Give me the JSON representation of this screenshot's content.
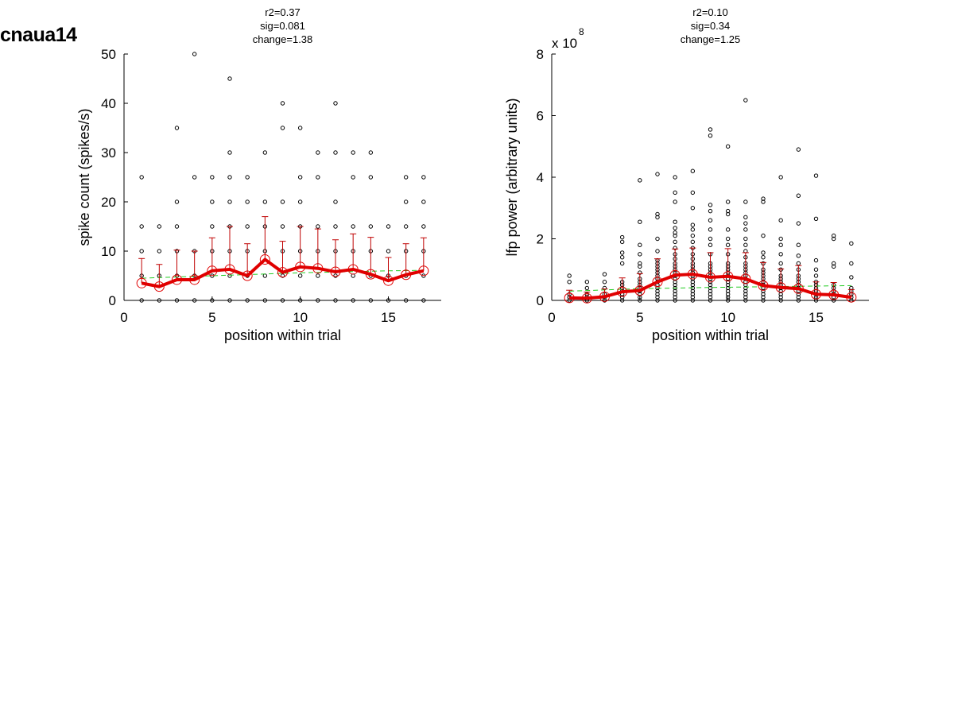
{
  "figure": {
    "title": "cnaua14"
  },
  "colors": {
    "mean_line": "#e00000",
    "error_bar": "#c00000",
    "fit_line": "#22cc22",
    "points": "#000000"
  },
  "chart_data": [
    {
      "type": "scatter",
      "stats": [
        "r2=0.37",
        "sig=0.081",
        "change=1.38"
      ],
      "xlabel": "position within trial",
      "ylabel": "spike count (spikes/s)",
      "exponent_label": "",
      "exponent_power": "",
      "xlim": [
        0,
        18
      ],
      "ylim": [
        0,
        50
      ],
      "xticks": [
        0,
        5,
        10,
        15
      ],
      "yticks": [
        0,
        10,
        20,
        30,
        40,
        50
      ],
      "points": [
        {
          "x": 1,
          "y": [
            0,
            5,
            10,
            15,
            25
          ]
        },
        {
          "x": 2,
          "y": [
            0,
            5,
            10,
            15
          ]
        },
        {
          "x": 3,
          "y": [
            0,
            5,
            10,
            15,
            20,
            35
          ]
        },
        {
          "x": 4,
          "y": [
            0,
            5,
            10,
            25,
            50
          ]
        },
        {
          "x": 5,
          "y": [
            0,
            5,
            10,
            15,
            20,
            25
          ]
        },
        {
          "x": 6,
          "y": [
            0,
            5,
            10,
            15,
            20,
            25,
            30,
            45
          ]
        },
        {
          "x": 7,
          "y": [
            0,
            5,
            10,
            15,
            20,
            25
          ]
        },
        {
          "x": 8,
          "y": [
            0,
            5,
            10,
            15,
            20,
            30
          ]
        },
        {
          "x": 9,
          "y": [
            0,
            5,
            10,
            15,
            20,
            35,
            40
          ]
        },
        {
          "x": 10,
          "y": [
            0,
            5,
            10,
            15,
            20,
            25,
            35
          ]
        },
        {
          "x": 11,
          "y": [
            0,
            5,
            10,
            15,
            25,
            30
          ]
        },
        {
          "x": 12,
          "y": [
            0,
            5,
            10,
            15,
            20,
            30,
            40
          ]
        },
        {
          "x": 13,
          "y": [
            0,
            5,
            10,
            15,
            25,
            30
          ]
        },
        {
          "x": 14,
          "y": [
            0,
            5,
            10,
            15,
            25,
            30
          ]
        },
        {
          "x": 15,
          "y": [
            0,
            5,
            10,
            15
          ]
        },
        {
          "x": 16,
          "y": [
            0,
            5,
            10,
            15,
            20,
            25
          ]
        },
        {
          "x": 17,
          "y": [
            0,
            5,
            10,
            15,
            20,
            25
          ]
        }
      ],
      "mean": [
        {
          "x": 1,
          "y": 3.5,
          "err": 5.0
        },
        {
          "x": 2,
          "y": 2.8,
          "err": 4.5
        },
        {
          "x": 3,
          "y": 4.2,
          "err": 6.0
        },
        {
          "x": 4,
          "y": 4.2,
          "err": 5.8
        },
        {
          "x": 5,
          "y": 6.0,
          "err": 6.7
        },
        {
          "x": 6,
          "y": 6.3,
          "err": 8.7
        },
        {
          "x": 7,
          "y": 5.0,
          "err": 6.5
        },
        {
          "x": 8,
          "y": 8.3,
          "err": 8.7
        },
        {
          "x": 9,
          "y": 5.7,
          "err": 6.3
        },
        {
          "x": 10,
          "y": 6.8,
          "err": 8.2
        },
        {
          "x": 11,
          "y": 6.5,
          "err": 8.0
        },
        {
          "x": 12,
          "y": 5.8,
          "err": 6.5
        },
        {
          "x": 13,
          "y": 6.3,
          "err": 7.2
        },
        {
          "x": 14,
          "y": 5.3,
          "err": 7.5
        },
        {
          "x": 15,
          "y": 4.0,
          "err": 4.7
        },
        {
          "x": 16,
          "y": 5.2,
          "err": 6.3
        },
        {
          "x": 17,
          "y": 6.0,
          "err": 6.7
        }
      ],
      "fit": {
        "x": [
          1,
          5,
          10,
          15,
          17
        ],
        "y": [
          4.5,
          5.0,
          5.6,
          6.0,
          6.1
        ]
      }
    },
    {
      "type": "scatter",
      "stats": [
        "r2=0.10",
        "sig=0.34",
        "change=1.25"
      ],
      "xlabel": "position within trial",
      "ylabel": "lfp power (arbitrary units)",
      "exponent_label": "x 10",
      "exponent_power": "8",
      "xlim": [
        0,
        18
      ],
      "ylim": [
        0,
        8
      ],
      "xticks": [
        0,
        5,
        10,
        15
      ],
      "yticks": [
        0,
        2,
        4,
        6,
        8
      ],
      "points": [
        {
          "x": 1,
          "y": [
            0.0,
            0.1,
            0.2,
            0.6,
            0.8
          ]
        },
        {
          "x": 2,
          "y": [
            0.0,
            0.05,
            0.1,
            0.2,
            0.4,
            0.6
          ]
        },
        {
          "x": 3,
          "y": [
            0.0,
            0.1,
            0.2,
            0.4,
            0.6,
            0.85
          ]
        },
        {
          "x": 4,
          "y": [
            0.0,
            0.1,
            0.2,
            0.3,
            0.4,
            0.5,
            0.6,
            1.2,
            1.4,
            1.55,
            1.9,
            2.05
          ]
        },
        {
          "x": 5,
          "y": [
            0.0,
            0.1,
            0.2,
            0.3,
            0.4,
            0.5,
            0.6,
            0.7,
            0.9,
            1.1,
            1.2,
            1.5,
            1.8,
            2.55,
            3.9
          ]
        },
        {
          "x": 6,
          "y": [
            0.0,
            0.1,
            0.2,
            0.3,
            0.4,
            0.5,
            0.6,
            0.7,
            0.8,
            0.9,
            1.0,
            1.1,
            1.2,
            1.3,
            1.6,
            2.0,
            2.7,
            2.8,
            4.1
          ]
        },
        {
          "x": 7,
          "y": [
            0.0,
            0.1,
            0.2,
            0.3,
            0.4,
            0.5,
            0.6,
            0.7,
            0.8,
            0.9,
            1.0,
            1.1,
            1.2,
            1.35,
            1.5,
            1.7,
            1.9,
            2.1,
            2.2,
            2.35,
            2.55,
            3.2,
            3.5,
            4.0
          ]
        },
        {
          "x": 8,
          "y": [
            0.0,
            0.1,
            0.2,
            0.3,
            0.4,
            0.5,
            0.6,
            0.7,
            0.8,
            0.9,
            1.0,
            1.1,
            1.2,
            1.35,
            1.5,
            1.7,
            1.9,
            2.1,
            2.3,
            2.45,
            3.0,
            3.5,
            4.2
          ]
        },
        {
          "x": 9,
          "y": [
            0.0,
            0.1,
            0.2,
            0.3,
            0.4,
            0.5,
            0.6,
            0.7,
            0.8,
            0.9,
            1.0,
            1.1,
            1.2,
            1.5,
            1.8,
            2.0,
            2.3,
            2.6,
            2.9,
            3.1,
            5.35,
            5.55
          ]
        },
        {
          "x": 10,
          "y": [
            0.0,
            0.1,
            0.2,
            0.3,
            0.4,
            0.5,
            0.6,
            0.7,
            0.8,
            0.9,
            1.0,
            1.1,
            1.2,
            1.5,
            1.8,
            2.0,
            2.3,
            2.8,
            2.9,
            3.2,
            5.0
          ]
        },
        {
          "x": 11,
          "y": [
            0.0,
            0.1,
            0.2,
            0.3,
            0.4,
            0.5,
            0.6,
            0.7,
            0.8,
            0.9,
            1.0,
            1.1,
            1.2,
            1.4,
            1.6,
            1.8,
            2.0,
            2.3,
            2.5,
            2.7,
            3.2,
            6.5
          ]
        },
        {
          "x": 12,
          "y": [
            0.0,
            0.1,
            0.2,
            0.3,
            0.4,
            0.5,
            0.6,
            0.7,
            0.8,
            0.9,
            1.0,
            1.2,
            1.4,
            1.55,
            2.1,
            3.2,
            3.3
          ]
        },
        {
          "x": 13,
          "y": [
            0.0,
            0.1,
            0.2,
            0.3,
            0.4,
            0.5,
            0.6,
            0.7,
            0.8,
            1.0,
            1.2,
            1.5,
            1.8,
            2.0,
            2.6,
            4.0
          ]
        },
        {
          "x": 14,
          "y": [
            0.0,
            0.1,
            0.2,
            0.3,
            0.4,
            0.5,
            0.6,
            0.7,
            0.8,
            1.0,
            1.2,
            1.45,
            1.8,
            2.5,
            3.4,
            4.9
          ]
        },
        {
          "x": 15,
          "y": [
            0.0,
            0.1,
            0.2,
            0.3,
            0.4,
            0.5,
            0.6,
            0.8,
            1.0,
            1.3,
            2.65,
            4.05
          ]
        },
        {
          "x": 16,
          "y": [
            0.0,
            0.1,
            0.2,
            0.3,
            0.4,
            0.5,
            1.1,
            1.2,
            2.0,
            2.1
          ]
        },
        {
          "x": 17,
          "y": [
            0.0,
            0.1,
            0.2,
            0.3,
            0.4,
            0.75,
            1.2,
            1.85
          ]
        }
      ],
      "mean": [
        {
          "x": 1,
          "y": 0.08,
          "err": 0.25
        },
        {
          "x": 2,
          "y": 0.07,
          "err": 0.2
        },
        {
          "x": 3,
          "y": 0.12,
          "err": 0.25
        },
        {
          "x": 4,
          "y": 0.28,
          "err": 0.45
        },
        {
          "x": 5,
          "y": 0.32,
          "err": 0.55
        },
        {
          "x": 6,
          "y": 0.6,
          "err": 0.75
        },
        {
          "x": 7,
          "y": 0.82,
          "err": 0.85
        },
        {
          "x": 8,
          "y": 0.85,
          "err": 0.85
        },
        {
          "x": 9,
          "y": 0.75,
          "err": 0.8
        },
        {
          "x": 10,
          "y": 0.78,
          "err": 0.9
        },
        {
          "x": 11,
          "y": 0.7,
          "err": 0.85
        },
        {
          "x": 12,
          "y": 0.48,
          "err": 0.75
        },
        {
          "x": 13,
          "y": 0.42,
          "err": 0.6
        },
        {
          "x": 14,
          "y": 0.38,
          "err": 0.75
        },
        {
          "x": 15,
          "y": 0.2,
          "err": 0.4
        },
        {
          "x": 16,
          "y": 0.18,
          "err": 0.4
        },
        {
          "x": 17,
          "y": 0.1,
          "err": 0.25
        }
      ],
      "fit": {
        "x": [
          1,
          5,
          9,
          13,
          17
        ],
        "y": [
          0.3,
          0.38,
          0.42,
          0.45,
          0.48
        ]
      }
    }
  ]
}
